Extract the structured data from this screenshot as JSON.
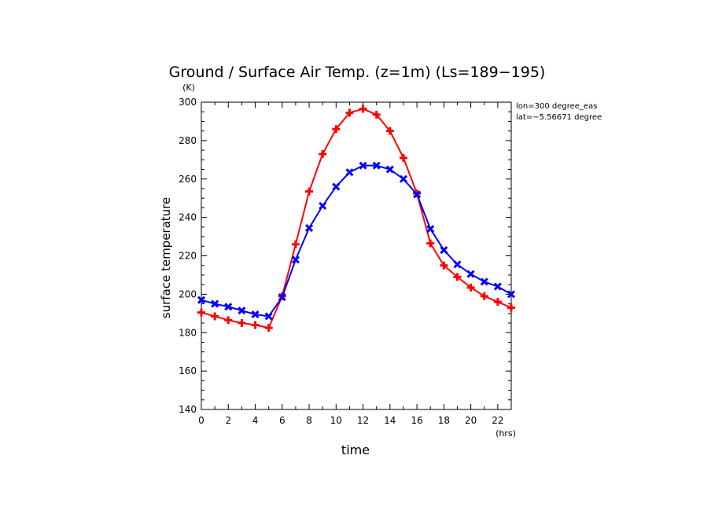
{
  "chart_data": {
    "type": "line",
    "title": "Ground / Surface Air Temp. (z=1m) (Ls=189−195)",
    "xlabel": "time",
    "ylabel": "surface temperature",
    "x_unit": "(hrs)",
    "y_unit": "(K)",
    "xlim": [
      0,
      23
    ],
    "ylim": [
      140,
      300
    ],
    "x_ticks": [
      0,
      2,
      4,
      6,
      8,
      10,
      12,
      14,
      16,
      18,
      20,
      22
    ],
    "y_ticks": [
      140,
      160,
      180,
      200,
      220,
      240,
      260,
      280,
      300
    ],
    "x": [
      0,
      1,
      2,
      3,
      4,
      5,
      6,
      7,
      8,
      9,
      10,
      11,
      12,
      13,
      14,
      15,
      16,
      17,
      18,
      19,
      20,
      21,
      22,
      23
    ],
    "annotations": [
      "lon=300 degree_eas",
      "lat=−5.56671 degree"
    ],
    "series": [
      {
        "color": "#ff0000",
        "marker": "plus",
        "values": [
          190.5,
          188.5,
          186.5,
          185,
          184,
          182.5,
          199,
          226,
          253.5,
          273,
          286,
          294.5,
          296.5,
          293.5,
          285,
          271,
          252.5,
          226.5,
          215,
          209,
          203.5,
          199,
          196,
          193
        ]
      },
      {
        "color": "#0000ff",
        "marker": "cross",
        "values": [
          197,
          195,
          193.5,
          191.5,
          189.5,
          188.5,
          198.5,
          218,
          234.5,
          246,
          256,
          263.5,
          267,
          267,
          265,
          260,
          252,
          234,
          223,
          215.5,
          210.5,
          206.5,
          204,
          200
        ]
      }
    ]
  }
}
